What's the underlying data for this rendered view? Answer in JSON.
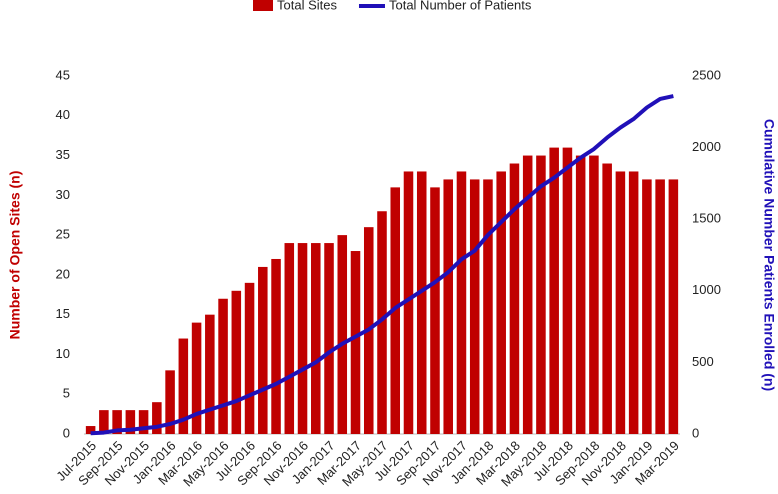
{
  "chart_data": {
    "type": "combo",
    "categories": [
      "Jul-2015",
      null,
      "Sep-2015",
      null,
      "Nov-2015",
      null,
      "Jan-2016",
      null,
      "Mar-2016",
      null,
      "May-2016",
      null,
      "Jul-2016",
      null,
      "Sep-2016",
      null,
      "Nov-2016",
      null,
      "Jan-2017",
      null,
      "Mar-2017",
      null,
      "May-2017",
      null,
      "Jul-2017",
      null,
      "Sep-2017",
      null,
      "Nov-2017",
      null,
      "Jan-2018",
      null,
      "Mar-2018",
      null,
      "May-2018",
      null,
      "Jul-2018",
      null,
      "Sep-2018",
      null,
      "Nov-2018",
      null,
      "Jan-2019",
      null,
      "Mar-2019"
    ],
    "series": [
      {
        "name": "Total Sites",
        "type": "bar",
        "color": "#c00000",
        "values": [
          1,
          3,
          3,
          3,
          3,
          4,
          8,
          12,
          14,
          15,
          17,
          18,
          19,
          21,
          22,
          24,
          24,
          24,
          24,
          25,
          23,
          26,
          28,
          31,
          33,
          33,
          31,
          32,
          33,
          32,
          32,
          33,
          34,
          35,
          35,
          36,
          36,
          35,
          35,
          34,
          33,
          33,
          32,
          32,
          32
        ]
      },
      {
        "name": "Total Number of Patients",
        "type": "line",
        "axis": "y2",
        "color": "#2010b8",
        "values": [
          5,
          10,
          25,
          30,
          40,
          50,
          70,
          100,
          140,
          170,
          200,
          230,
          270,
          310,
          350,
          400,
          450,
          500,
          570,
          630,
          680,
          730,
          800,
          880,
          940,
          1000,
          1060,
          1130,
          1220,
          1280,
          1390,
          1480,
          1570,
          1650,
          1730,
          1790,
          1860,
          1930,
          1990,
          2070,
          2140,
          2200,
          2280,
          2340,
          2360
        ]
      }
    ],
    "y_label": "Number of Open Sites (n)",
    "y2_label": "Cumulative Number Patients Enrolled (n)",
    "ylim": [
      0,
      45
    ],
    "yticks": [
      0,
      5,
      10,
      15,
      20,
      25,
      30,
      35,
      40,
      45
    ],
    "y2lim": [
      0,
      2500
    ],
    "y2ticks": [
      0,
      500,
      1000,
      1500,
      2000,
      2500
    ]
  }
}
